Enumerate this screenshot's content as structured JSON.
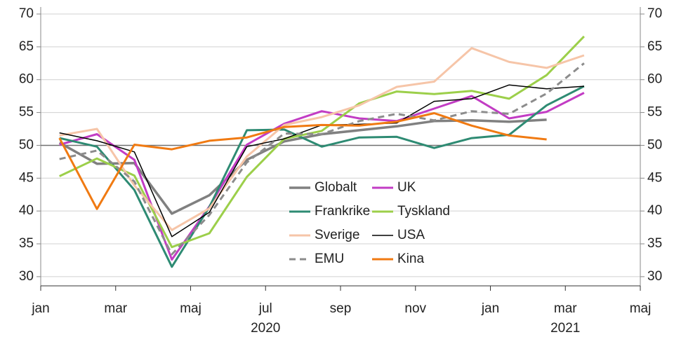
{
  "chart_data": {
    "type": "line",
    "x": [
      "2020-01",
      "2020-02",
      "2020-03",
      "2020-04",
      "2020-05",
      "2020-06",
      "2020-07",
      "2020-08",
      "2020-09",
      "2020-10",
      "2020-11",
      "2020-12",
      "2021-01",
      "2021-02",
      "2021-03"
    ],
    "xlim": [
      "2020-01",
      "2021-05"
    ],
    "xticks": [
      {
        "value": "2020-01",
        "label": "jan"
      },
      {
        "value": "2020-03",
        "label": "mar"
      },
      {
        "value": "2020-05",
        "label": "maj"
      },
      {
        "value": "2020-07",
        "label": "jul"
      },
      {
        "value": "2020-09",
        "label": "sep"
      },
      {
        "value": "2020-11",
        "label": "nov"
      },
      {
        "value": "2021-01",
        "label": "jan"
      },
      {
        "value": "2021-03",
        "label": "mar"
      },
      {
        "value": "2021-05",
        "label": "maj"
      }
    ],
    "x_group_labels": [
      {
        "value": "2020-07",
        "label": "2020"
      },
      {
        "value": "2021-03",
        "label": "2021"
      }
    ],
    "ylim": [
      28.6,
      70
    ],
    "yticks": [
      30,
      35,
      40,
      45,
      50,
      55,
      60,
      65,
      70
    ],
    "y2lim": [
      28.6,
      70
    ],
    "y2ticks": [
      30,
      35,
      40,
      45,
      50,
      55,
      60,
      65,
      70
    ],
    "reference_line": 50,
    "grid": true,
    "series": [
      {
        "name": "Globalt",
        "color": "#808080",
        "dash": false,
        "width": 3.5,
        "values": [
          50.4,
          47.2,
          47.3,
          39.6,
          42.4,
          47.8,
          50.6,
          51.7,
          52.3,
          52.9,
          53.7,
          53.8,
          53.6,
          53.9,
          null
        ]
      },
      {
        "name": "UK",
        "color": "#c23cc4",
        "dash": false,
        "width": 3,
        "values": [
          50.1,
          51.7,
          47.8,
          32.6,
          40.7,
          50.1,
          53.3,
          55.2,
          54.1,
          53.7,
          55.6,
          57.5,
          54.1,
          55.1,
          58.0
        ]
      },
      {
        "name": "Frankrike",
        "color": "#2e8b73",
        "dash": false,
        "width": 3,
        "values": [
          51.1,
          49.8,
          43.2,
          31.5,
          40.6,
          52.3,
          52.4,
          49.8,
          51.2,
          51.3,
          49.6,
          51.1,
          51.6,
          56.1,
          59.0
        ]
      },
      {
        "name": "Tyskland",
        "color": "#9ccf4a",
        "dash": false,
        "width": 3,
        "values": [
          45.3,
          48.0,
          45.4,
          34.5,
          36.6,
          45.2,
          51.0,
          52.2,
          56.4,
          58.2,
          57.8,
          58.3,
          57.1,
          60.7,
          66.6
        ]
      },
      {
        "name": "Sverige",
        "color": "#f6c5a8",
        "dash": false,
        "width": 3,
        "values": [
          51.5,
          52.5,
          43.9,
          37.1,
          40.4,
          48.3,
          53.1,
          54.3,
          56.1,
          58.9,
          59.7,
          64.8,
          62.7,
          61.8,
          63.7
        ]
      },
      {
        "name": "USA",
        "color": "#000000",
        "dash": false,
        "width": 1.5,
        "values": [
          51.9,
          50.7,
          49.0,
          36.1,
          39.8,
          49.8,
          51.0,
          53.1,
          53.2,
          53.4,
          56.7,
          57.1,
          59.2,
          58.6,
          59.0
        ]
      },
      {
        "name": "EMU",
        "color": "#8c8c8c",
        "dash": true,
        "width": 3,
        "values": [
          47.9,
          49.2,
          44.5,
          33.4,
          39.4,
          47.4,
          51.8,
          51.7,
          53.7,
          54.8,
          53.8,
          55.2,
          54.8,
          57.9,
          62.5
        ]
      },
      {
        "name": "Kina",
        "color": "#f07a12",
        "dash": false,
        "width": 3,
        "values": [
          51.1,
          40.3,
          50.1,
          49.4,
          50.7,
          51.2,
          52.8,
          53.1,
          53.0,
          53.6,
          54.9,
          53.0,
          51.5,
          50.9,
          null
        ]
      }
    ]
  }
}
